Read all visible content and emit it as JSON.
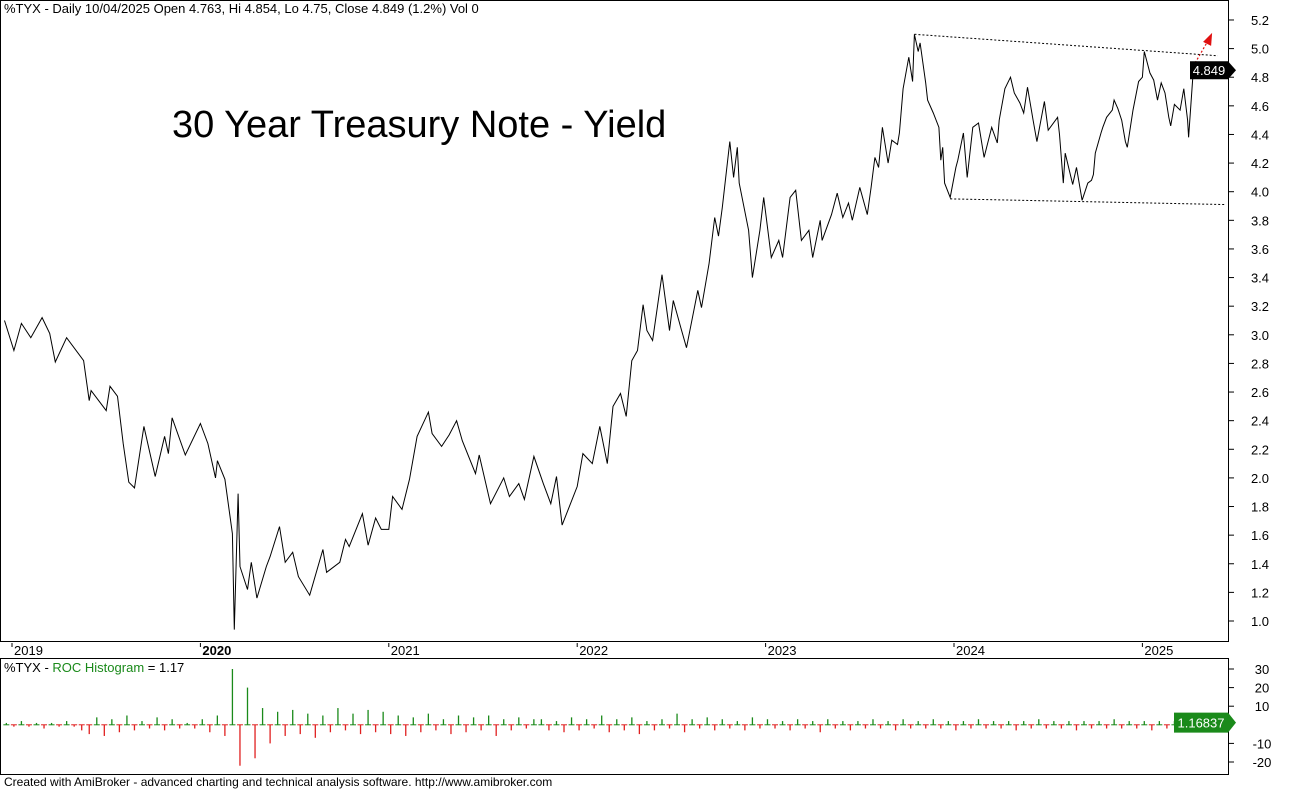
{
  "header": {
    "text": "%TYX - Daily 10/04/2025 Open 4.763, Hi 4.854, Lo 4.75, Close 4.849 (1.2%) Vol 0"
  },
  "title": "30 Year Treasury Note - Yield",
  "subpanel": {
    "prefix": "%TYX - ",
    "indicator": "ROC Histogram",
    "suffix": " = 1.17"
  },
  "footer": "Created with AmiBroker - advanced charting and technical analysis software. http://www.amibroker.com",
  "colors": {
    "line": "#000000",
    "positive": "#1a8a1a",
    "negative": "#e02020",
    "arrow": "#e01010",
    "last_price_label": "#000000",
    "roc_label": "#1a8a1a"
  },
  "chart_data": [
    {
      "type": "line",
      "title": "30 Year Treasury Note - Yield",
      "x_ticks": [
        "2019",
        "2020",
        "2021",
        "2022",
        "2023",
        "2024",
        "2025"
      ],
      "bold_tick": "2020",
      "y_ticks": [
        "5.2",
        "5.0",
        "4.8",
        "4.6",
        "4.4",
        "4.2",
        "4.0",
        "3.8",
        "3.6",
        "3.4",
        "3.2",
        "3.0",
        "2.8",
        "2.6",
        "2.4",
        "2.2",
        "2.0",
        "1.8",
        "1.6",
        "1.4",
        "1.2",
        "1.0"
      ],
      "ylim": [
        0.9,
        5.3
      ],
      "last_value_label": "4.849",
      "series": [
        {
          "points": [
            [
              2018.96,
              3.1
            ],
            [
              2019.01,
              2.89
            ],
            [
              2019.05,
              3.08
            ],
            [
              2019.1,
              2.98
            ],
            [
              2019.16,
              3.12
            ],
            [
              2019.2,
              3.01
            ],
            [
              2019.23,
              2.81
            ],
            [
              2019.29,
              2.98
            ],
            [
              2019.38,
              2.82
            ],
            [
              2019.41,
              2.54
            ],
            [
              2019.42,
              2.61
            ],
            [
              2019.5,
              2.47
            ],
            [
              2019.52,
              2.64
            ],
            [
              2019.56,
              2.57
            ],
            [
              2019.59,
              2.24
            ],
            [
              2019.62,
              1.97
            ],
            [
              2019.65,
              1.93
            ],
            [
              2019.7,
              2.36
            ],
            [
              2019.76,
              2.01
            ],
            [
              2019.81,
              2.29
            ],
            [
              2019.83,
              2.17
            ],
            [
              2019.85,
              2.42
            ],
            [
              2019.92,
              2.16
            ],
            [
              2020.0,
              2.38
            ],
            [
              2020.04,
              2.24
            ],
            [
              2020.08,
              2.0
            ],
            [
              2020.09,
              2.12
            ],
            [
              2020.13,
              1.99
            ],
            [
              2020.17,
              1.61
            ],
            [
              2020.18,
              0.94
            ],
            [
              2020.2,
              1.89
            ],
            [
              2020.21,
              1.38
            ],
            [
              2020.25,
              1.22
            ],
            [
              2020.27,
              1.41
            ],
            [
              2020.3,
              1.16
            ],
            [
              2020.35,
              1.38
            ],
            [
              2020.37,
              1.45
            ],
            [
              2020.42,
              1.66
            ],
            [
              2020.45,
              1.41
            ],
            [
              2020.49,
              1.48
            ],
            [
              2020.52,
              1.31
            ],
            [
              2020.58,
              1.18
            ],
            [
              2020.65,
              1.5
            ],
            [
              2020.67,
              1.34
            ],
            [
              2020.74,
              1.41
            ],
            [
              2020.77,
              1.57
            ],
            [
              2020.79,
              1.52
            ],
            [
              2020.86,
              1.75
            ],
            [
              2020.89,
              1.53
            ],
            [
              2020.93,
              1.72
            ],
            [
              2020.96,
              1.64
            ],
            [
              2021.0,
              1.64
            ],
            [
              2021.02,
              1.87
            ],
            [
              2021.07,
              1.78
            ],
            [
              2021.11,
              1.99
            ],
            [
              2021.15,
              2.29
            ],
            [
              2021.21,
              2.46
            ],
            [
              2021.23,
              2.31
            ],
            [
              2021.28,
              2.22
            ],
            [
              2021.32,
              2.3
            ],
            [
              2021.36,
              2.4
            ],
            [
              2021.39,
              2.26
            ],
            [
              2021.46,
              2.03
            ],
            [
              2021.48,
              2.16
            ],
            [
              2021.54,
              1.82
            ],
            [
              2021.61,
              2.0
            ],
            [
              2021.64,
              1.87
            ],
            [
              2021.69,
              1.96
            ],
            [
              2021.72,
              1.85
            ],
            [
              2021.77,
              2.15
            ],
            [
              2021.82,
              1.96
            ],
            [
              2021.86,
              1.82
            ],
            [
              2021.89,
              2.01
            ],
            [
              2021.92,
              1.67
            ],
            [
              2022.0,
              1.94
            ],
            [
              2022.03,
              2.17
            ],
            [
              2022.08,
              2.1
            ],
            [
              2022.12,
              2.36
            ],
            [
              2022.16,
              2.1
            ],
            [
              2022.19,
              2.5
            ],
            [
              2022.23,
              2.59
            ],
            [
              2022.26,
              2.43
            ],
            [
              2022.29,
              2.82
            ],
            [
              2022.32,
              2.89
            ],
            [
              2022.35,
              3.21
            ],
            [
              2022.37,
              3.03
            ],
            [
              2022.4,
              2.96
            ],
            [
              2022.45,
              3.42
            ],
            [
              2022.49,
              3.03
            ],
            [
              2022.51,
              3.24
            ],
            [
              2022.55,
              3.05
            ],
            [
              2022.58,
              2.91
            ],
            [
              2022.64,
              3.31
            ],
            [
              2022.66,
              3.19
            ],
            [
              2022.7,
              3.5
            ],
            [
              2022.73,
              3.82
            ],
            [
              2022.75,
              3.69
            ],
            [
              2022.77,
              3.89
            ],
            [
              2022.81,
              4.35
            ],
            [
              2022.83,
              4.1
            ],
            [
              2022.85,
              4.31
            ],
            [
              2022.86,
              4.06
            ],
            [
              2022.91,
              3.73
            ],
            [
              2022.93,
              3.4
            ],
            [
              2022.97,
              3.73
            ],
            [
              2022.99,
              3.96
            ],
            [
              2023.03,
              3.54
            ],
            [
              2023.07,
              3.66
            ],
            [
              2023.09,
              3.54
            ],
            [
              2023.13,
              3.96
            ],
            [
              2023.16,
              4.01
            ],
            [
              2023.19,
              3.66
            ],
            [
              2023.23,
              3.73
            ],
            [
              2023.25,
              3.54
            ],
            [
              2023.29,
              3.8
            ],
            [
              2023.3,
              3.66
            ],
            [
              2023.35,
              3.84
            ],
            [
              2023.38,
              3.99
            ],
            [
              2023.41,
              3.82
            ],
            [
              2023.44,
              3.92
            ],
            [
              2023.46,
              3.8
            ],
            [
              2023.5,
              4.03
            ],
            [
              2023.54,
              3.84
            ],
            [
              2023.56,
              4.03
            ],
            [
              2023.58,
              4.24
            ],
            [
              2023.6,
              4.17
            ],
            [
              2023.62,
              4.45
            ],
            [
              2023.65,
              4.2
            ],
            [
              2023.67,
              4.36
            ],
            [
              2023.7,
              4.33
            ],
            [
              2023.71,
              4.41
            ],
            [
              2023.73,
              4.72
            ],
            [
              2023.76,
              4.94
            ],
            [
              2023.78,
              4.77
            ],
            [
              2023.79,
              5.1
            ],
            [
              2023.81,
              4.98
            ],
            [
              2023.82,
              5.04
            ],
            [
              2023.85,
              4.76
            ],
            [
              2023.86,
              4.64
            ],
            [
              2023.89,
              4.55
            ],
            [
              2023.92,
              4.45
            ],
            [
              2023.93,
              4.22
            ],
            [
              2023.94,
              4.31
            ],
            [
              2023.95,
              4.06
            ],
            [
              2023.98,
              3.96
            ],
            [
              2024.01,
              4.17
            ],
            [
              2024.02,
              4.22
            ],
            [
              2024.05,
              4.41
            ],
            [
              2024.07,
              4.1
            ],
            [
              2024.1,
              4.45
            ],
            [
              2024.13,
              4.48
            ],
            [
              2024.16,
              4.24
            ],
            [
              2024.2,
              4.45
            ],
            [
              2024.23,
              4.34
            ],
            [
              2024.24,
              4.5
            ],
            [
              2024.27,
              4.72
            ],
            [
              2024.3,
              4.8
            ],
            [
              2024.32,
              4.69
            ],
            [
              2024.35,
              4.62
            ],
            [
              2024.37,
              4.55
            ],
            [
              2024.39,
              4.73
            ],
            [
              2024.42,
              4.5
            ],
            [
              2024.44,
              4.35
            ],
            [
              2024.48,
              4.63
            ],
            [
              2024.5,
              4.43
            ],
            [
              2024.55,
              4.52
            ],
            [
              2024.56,
              4.4
            ],
            [
              2024.58,
              4.06
            ],
            [
              2024.59,
              4.27
            ],
            [
              2024.63,
              4.05
            ],
            [
              2024.65,
              4.17
            ],
            [
              2024.68,
              3.94
            ],
            [
              2024.71,
              4.06
            ],
            [
              2024.73,
              4.08
            ],
            [
              2024.74,
              4.12
            ],
            [
              2024.75,
              4.27
            ],
            [
              2024.78,
              4.41
            ],
            [
              2024.79,
              4.45
            ],
            [
              2024.81,
              4.52
            ],
            [
              2024.84,
              4.57
            ],
            [
              2024.85,
              4.64
            ],
            [
              2024.87,
              4.58
            ],
            [
              2024.89,
              4.5
            ],
            [
              2024.91,
              4.35
            ],
            [
              2024.92,
              4.31
            ],
            [
              2024.95,
              4.57
            ],
            [
              2024.98,
              4.77
            ],
            [
              2025.0,
              4.8
            ],
            [
              2025.01,
              4.98
            ],
            [
              2025.04,
              4.83
            ],
            [
              2025.06,
              4.78
            ],
            [
              2025.08,
              4.64
            ],
            [
              2025.1,
              4.76
            ],
            [
              2025.12,
              4.69
            ],
            [
              2025.14,
              4.52
            ],
            [
              2025.15,
              4.46
            ],
            [
              2025.17,
              4.61
            ],
            [
              2025.2,
              4.57
            ],
            [
              2025.22,
              4.72
            ],
            [
              2025.24,
              4.5
            ],
            [
              2025.245,
              4.38
            ],
            [
              2025.27,
              4.849
            ]
          ]
        }
      ],
      "trendlines": [
        {
          "style": "dotted",
          "from": [
            2023.79,
            5.1
          ],
          "to": [
            2025.4,
            4.95
          ]
        },
        {
          "style": "dotted",
          "from": [
            2023.98,
            3.95
          ],
          "to": [
            2025.44,
            3.91
          ]
        }
      ],
      "arrow": {
        "style": "dotted",
        "color": "#e01010",
        "from": [
          2025.28,
          4.9
        ],
        "to": [
          2025.37,
          5.11
        ]
      }
    },
    {
      "type": "bar",
      "title": "ROC Histogram",
      "y_ticks": [
        "30",
        "20",
        "10",
        "-10",
        "-20"
      ],
      "ylim": [
        -25,
        35
      ],
      "last_value_label": "1.16837",
      "x_start": 2018.97,
      "x_step": 0.04,
      "values": [
        1,
        -1,
        2,
        -1,
        1,
        -2,
        1,
        -1,
        2,
        -1,
        -3,
        -5,
        4,
        -6,
        3,
        -4,
        5,
        -3,
        2,
        -2,
        4,
        -3,
        3,
        -2,
        1,
        -2,
        3,
        -4,
        5,
        -6,
        30,
        -22,
        20,
        -18,
        9,
        -10,
        7,
        -6,
        8,
        -5,
        6,
        -7,
        5,
        -4,
        9,
        -3,
        6,
        -5,
        8,
        -4,
        7,
        -5,
        5,
        -6,
        4,
        -4,
        6,
        -3,
        3,
        -5,
        5,
        -4,
        4,
        -3,
        5,
        -6,
        3,
        -3,
        4,
        -2,
        3,
        3,
        -3,
        2,
        -4,
        4,
        -3,
        3,
        -2,
        5,
        -4,
        3,
        -3,
        4,
        -5,
        2,
        -3,
        3,
        -2,
        6,
        -4,
        3,
        -2,
        4,
        -3,
        3,
        -2,
        2,
        -3,
        4,
        -2,
        3,
        -2,
        2,
        -3,
        3,
        -2,
        2,
        -4,
        3,
        -2,
        2,
        -3,
        2,
        -2,
        3,
        -2,
        2,
        -3,
        3,
        -2,
        2,
        -2,
        3,
        -2,
        2,
        -3,
        2,
        -2,
        3,
        -2,
        2,
        -2,
        2,
        -3,
        2,
        -2,
        3,
        -2,
        2,
        -2,
        2,
        -3,
        2,
        -2,
        2,
        -2,
        3,
        -2,
        2,
        -2,
        2,
        -3,
        2,
        -2,
        2,
        -3,
        1.17
      ]
    }
  ]
}
